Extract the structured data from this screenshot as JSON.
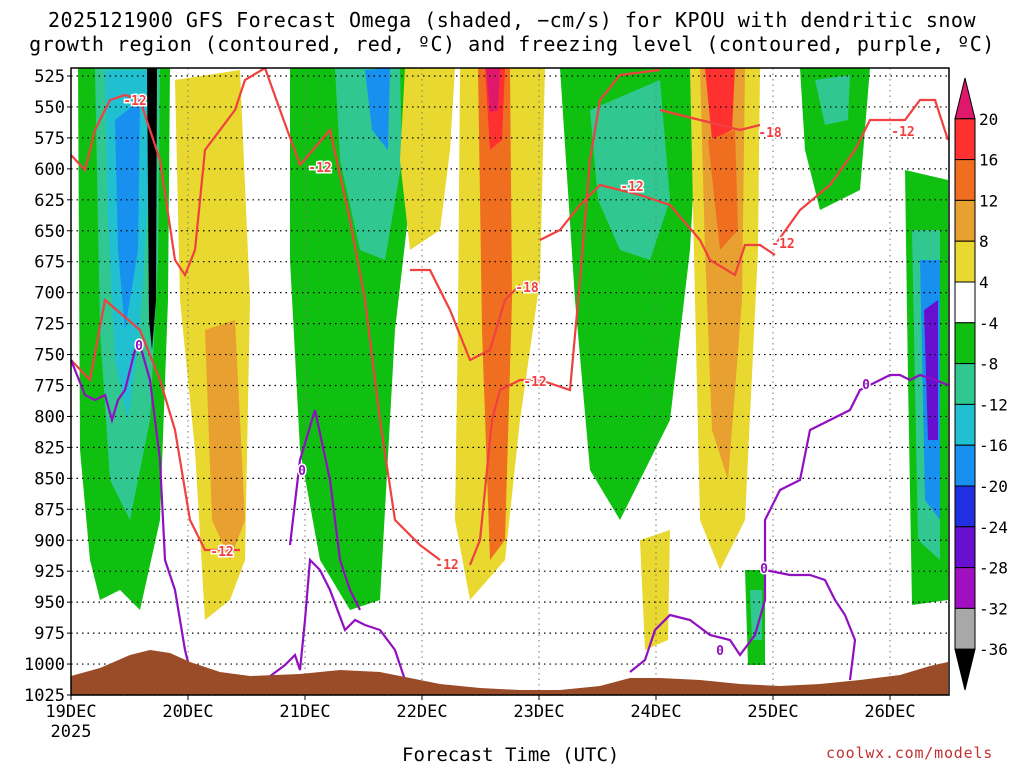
{
  "header": {
    "title_line1": "2025121900 GFS Forecast Omega (shaded, −cm/s) for KPOU with dendritic snow",
    "title_line2": "growth region (contoured, red, ºC) and freezing level (contoured, purple, ºC)"
  },
  "footer": {
    "xaxis_title": "Forecast Time (UTC)",
    "watermark": "coolwx.com/models"
  },
  "chart_data": {
    "type": "heatmap",
    "title": "2025121900 GFS Forecast Omega (shaded, −cm/s) for KPOU with dendritic snow growth region (contoured, red, ºC) and freezing level (contoured, purple, ºC)",
    "xlabel": "Forecast Time (UTC)",
    "ylabel": "",
    "x_ticks": [
      "19DEC",
      "20DEC",
      "21DEC",
      "22DEC",
      "23DEC",
      "24DEC",
      "25DEC",
      "26DEC"
    ],
    "x_sub_label": "2025",
    "y_ticks": [
      525,
      550,
      575,
      600,
      625,
      650,
      675,
      700,
      725,
      750,
      775,
      800,
      825,
      850,
      875,
      900,
      925,
      950,
      975,
      1000,
      1025
    ],
    "ylim": [
      1025,
      525
    ],
    "grid": true,
    "colorbar": {
      "labels": [
        "20",
        "16",
        "12",
        "8",
        "4",
        "-4",
        "-8",
        "-12",
        "-16",
        "-20",
        "-24",
        "-28",
        "-32",
        "-36"
      ],
      "colors": [
        "#e0186c",
        "#ff3030",
        "#f06e20",
        "#e8a030",
        "#e8d830",
        "#ffffff",
        "#10c010",
        "#30c890",
        "#20c0d0",
        "#1890f0",
        "#2030e0",
        "#6810d0",
        "#a010c0",
        "#a8a8a8",
        "#000000"
      ]
    },
    "contour_labels_red": [
      "-12",
      "-12",
      "-12",
      "-12",
      "-12",
      "-12",
      "-12",
      "-12",
      "-18",
      "-18"
    ],
    "contour_labels_purple": [
      "0",
      "0",
      "0",
      "0",
      "0"
    ],
    "series": [
      {
        "name": "dendritic snow growth region (red)",
        "color": "#f04040"
      },
      {
        "name": "freezing level (purple)",
        "color": "#9010c0"
      }
    ]
  }
}
